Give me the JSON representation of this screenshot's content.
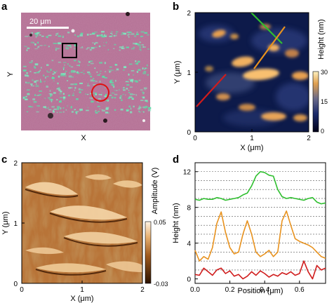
{
  "panels": {
    "a": {
      "label": "a",
      "scalebar_label": "20 μm",
      "x_label": "X",
      "y_label": "Y"
    },
    "b": {
      "label": "b",
      "x_label": "X (μm)",
      "y_label": "Y (μm)",
      "x_ticks": [
        "0",
        "1",
        "2"
      ],
      "y_ticks": [
        "0",
        "1",
        "2"
      ],
      "colorbar_label": "Height (nm)",
      "colorbar_ticks": [
        "30",
        "15",
        "0"
      ],
      "colorbar_range": [
        0,
        30
      ]
    },
    "c": {
      "label": "c",
      "x_label": "X (μm)",
      "y_label": "Y (μm)",
      "x_ticks": [
        "0",
        "1",
        "2"
      ],
      "y_ticks": [
        "0",
        "1",
        "2"
      ],
      "colorbar_label": "Amplitude (V)",
      "colorbar_ticks": [
        "0.05",
        "",
        "-0.03"
      ],
      "colorbar_range": [
        -0.03,
        0.05
      ]
    },
    "d": {
      "label": "d",
      "x_label": "Position (μm)",
      "y_label": "Height (nm)"
    }
  },
  "colors": {
    "green_line": "#2fbf2f",
    "orange_line": "#e8921e",
    "red_line": "#d01c1c",
    "afm_dark": "#0d1a4a",
    "afm_bright": "#f2b860"
  },
  "chart_data": {
    "type": "line",
    "panel": "d",
    "xlabel": "Position (μm)",
    "ylabel": "Height (nm)",
    "xlim": [
      0,
      0.75
    ],
    "ylim": [
      -0.5,
      13
    ],
    "x_ticks": [
      0.0,
      0.2,
      0.4,
      0.6
    ],
    "y_ticks": [
      0,
      4,
      8,
      12
    ],
    "grid": "horizontal-dashed",
    "x": [
      0.0,
      0.025,
      0.05,
      0.075,
      0.1,
      0.125,
      0.15,
      0.175,
      0.2,
      0.225,
      0.25,
      0.275,
      0.3,
      0.325,
      0.35,
      0.375,
      0.4,
      0.425,
      0.45,
      0.475,
      0.5,
      0.525,
      0.55,
      0.575,
      0.6,
      0.625,
      0.65,
      0.675,
      0.7,
      0.725,
      0.75
    ],
    "series": [
      {
        "color": "green",
        "values": [
          8.9,
          8.8,
          9.0,
          8.9,
          8.9,
          9.1,
          9.0,
          8.8,
          8.9,
          9.0,
          9.1,
          9.4,
          9.6,
          10.4,
          11.5,
          12.0,
          11.9,
          11.6,
          11.5,
          10.0,
          9.2,
          9.0,
          9.1,
          9.0,
          8.9,
          8.8,
          9.0,
          9.1,
          8.6,
          8.4,
          8.5
        ]
      },
      {
        "color": "orange",
        "values": [
          3.2,
          2.0,
          2.5,
          2.2,
          3.5,
          6.2,
          7.5,
          5.2,
          3.5,
          2.8,
          3.0,
          5.0,
          6.5,
          5.0,
          3.0,
          2.5,
          2.8,
          3.2,
          2.5,
          3.0,
          6.5,
          7.6,
          6.0,
          4.5,
          4.2,
          4.0,
          3.8,
          3.5,
          3.0,
          2.5,
          2.3
        ]
      },
      {
        "color": "red",
        "values": [
          0.5,
          0.4,
          1.2,
          0.8,
          0.4,
          1.0,
          1.2,
          0.6,
          0.9,
          0.3,
          0.5,
          0.0,
          0.3,
          0.8,
          0.4,
          0.9,
          0.6,
          0.2,
          0.5,
          0.3,
          0.7,
          0.5,
          0.8,
          0.4,
          0.6,
          2.0,
          0.8,
          0.0,
          1.5,
          1.0,
          1.2
        ]
      }
    ]
  }
}
